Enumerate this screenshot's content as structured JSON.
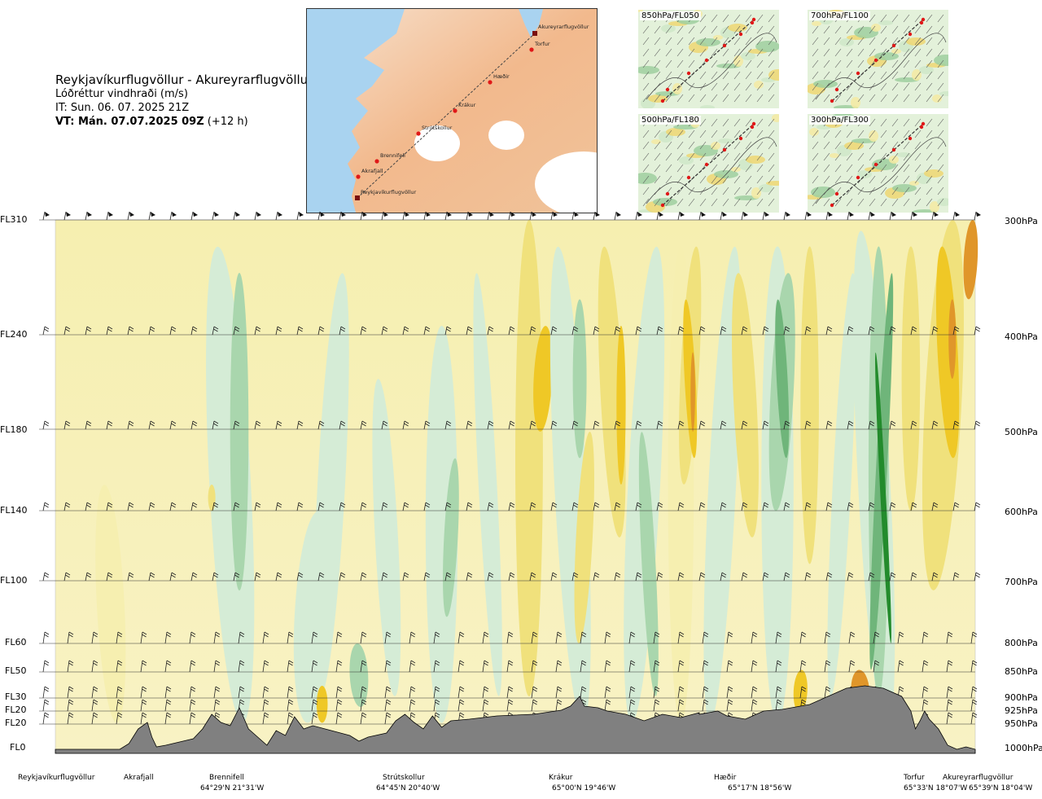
{
  "header": {
    "title": "Reykjavíkurflugvöllur - Akureyrarflugvöllur",
    "subtitle": "Lóðréttur vindhraði (m/s)",
    "issue_time": "IT: Sun. 06. 07. 2025 21Z",
    "valid_time_bold": "VT: Mán. 07.07.2025 09Z",
    "valid_time_offset": "(+12 h)"
  },
  "route_map": {
    "places": [
      {
        "name": "Akureyrarflugvöllur",
        "type": "airport"
      },
      {
        "name": "Torfur",
        "type": "waypoint"
      },
      {
        "name": "Hæðir",
        "type": "waypoint"
      },
      {
        "name": "Krákur",
        "type": "waypoint"
      },
      {
        "name": "Strútskollur",
        "type": "waypoint"
      },
      {
        "name": "Brennifell",
        "type": "waypoint"
      },
      {
        "name": "Akrafjall",
        "type": "waypoint"
      },
      {
        "name": "Reykjavíkurflugvöllur",
        "type": "airport"
      }
    ]
  },
  "thumbnails": [
    {
      "label": "850hPa/FL050"
    },
    {
      "label": "700hPa/FL100"
    },
    {
      "label": "500hPa/FL180"
    },
    {
      "label": "300hPa/FL300"
    }
  ],
  "colors": {
    "terrain": "#808080",
    "strong_down": "#238b2c",
    "mod_down": "#6fb57a",
    "weak_down": "#a9d6ad",
    "faint_down": "#d5ecd6",
    "faint_up": "#f6efb0",
    "weak_up": "#f0e17c",
    "mod_up": "#efc826",
    "strong_up": "#e0962a"
  },
  "chart_data": {
    "type": "heatmap",
    "title": "Reykjavíkurflugvöllur - Akureyrarflugvöllur",
    "variable": "Lóðréttur vindhraði (m/s)",
    "y_levels_left": [
      "FL310",
      "FL240",
      "FL180",
      "FL140",
      "FL100",
      "FL60",
      "FL50",
      "FL30",
      "FL20",
      "FL20",
      "FL0"
    ],
    "y_levels_right": [
      "300hPa",
      "400hPa",
      "500hPa",
      "600hPa",
      "700hPa",
      "800hPa",
      "850hPa",
      "900hPa",
      "925hPa",
      "950hPa",
      "1000hPa"
    ],
    "x_locations": [
      {
        "name": "Reykjavíkurflugvöllur",
        "coord": ""
      },
      {
        "name": "Akrafjall",
        "coord": ""
      },
      {
        "name": "Brennifell",
        "coord": "64°29'N 21°31'W"
      },
      {
        "name": "Strútskollur",
        "coord": "64°45'N 20°40'W"
      },
      {
        "name": "Krákur",
        "coord": "65°00'N 19°46'W"
      },
      {
        "name": "Hæðir",
        "coord": "65°17'N 18°56'W"
      },
      {
        "name": "Torfur",
        "coord": "65°33'N 18°07'W"
      },
      {
        "name": "Akureyrarflugvöllur",
        "coord": "65°39'N 18°04'W"
      }
    ],
    "x_range": [
      0,
      1
    ],
    "updraft_maxima_fraction": [
      0.06,
      0.29,
      0.5,
      0.58,
      0.78,
      0.9,
      0.97
    ],
    "downdraft_maxima_fraction": [
      0.2,
      0.42,
      0.56,
      0.69,
      0.81,
      0.89
    ]
  }
}
